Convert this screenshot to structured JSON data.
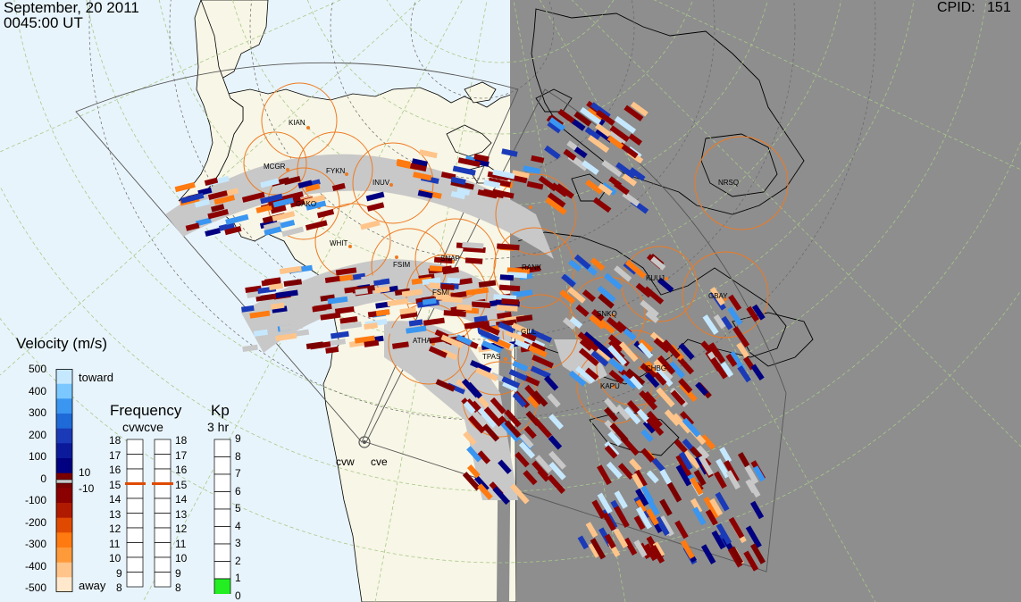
{
  "header": {
    "date": "September, 20 2011",
    "time": "0045:00 UT",
    "cpid_label": "CPID:",
    "cpid_value": "151"
  },
  "velocity_scale": {
    "title": "Velocity (m/s)",
    "ticks": [
      "500",
      "400",
      "300",
      "200",
      "100",
      "0",
      "-100",
      "-200",
      "-300",
      "-400",
      "-500"
    ],
    "toward_label": "toward",
    "away_label": "away",
    "ground_pos": "10",
    "ground_neg": "-10",
    "colors": [
      "#ffe8cc",
      "#ffc48a",
      "#ff9a3a",
      "#ff7a10",
      "#e04a00",
      "#b01a00",
      "#8b0000",
      "#7a0000",
      "#000080",
      "#0a1a9a",
      "#1a3ab8",
      "#1e6ad8",
      "#3a96f0",
      "#7ac8ff",
      "#c6e8ff"
    ]
  },
  "frequency": {
    "title": "Frequency",
    "subtitle": "cvwcve",
    "left_labels": [
      "18",
      "17",
      "16",
      "15",
      "14",
      "13",
      "12",
      "11",
      "10",
      "9",
      "8"
    ],
    "right_labels": [
      "18",
      "17",
      "16",
      "15",
      "14",
      "13",
      "12",
      "11",
      "10",
      "9",
      "8"
    ],
    "cvw_value": 15,
    "cve_value": 15
  },
  "kp": {
    "title": "Kp",
    "subtitle": "3 hr",
    "labels": [
      "9",
      "8",
      "7",
      "6",
      "5",
      "4",
      "3",
      "2",
      "1",
      "0"
    ],
    "value": 1
  },
  "radars": {
    "cvw": "cvw",
    "cve": "cve"
  },
  "stations": [
    "KIAN",
    "MCGR",
    "FYKN",
    "INUV",
    "GAKO",
    "WHIT",
    "FSIM",
    "SNAP",
    "FSMI",
    "ATHA",
    "TPAS",
    "RANK",
    "GILL",
    "SNKQ",
    "KUUJ",
    "GBAY",
    "CHBG",
    "KAPU",
    "NRSQ"
  ],
  "colors": {
    "land": "#f8f6e6",
    "ocean": "#e8f4fb",
    "night": "#8e8e8e",
    "station_circle": "#ee7a22",
    "grid_line": "#a8c98a",
    "ground_scatter": "#c8c8c8"
  }
}
